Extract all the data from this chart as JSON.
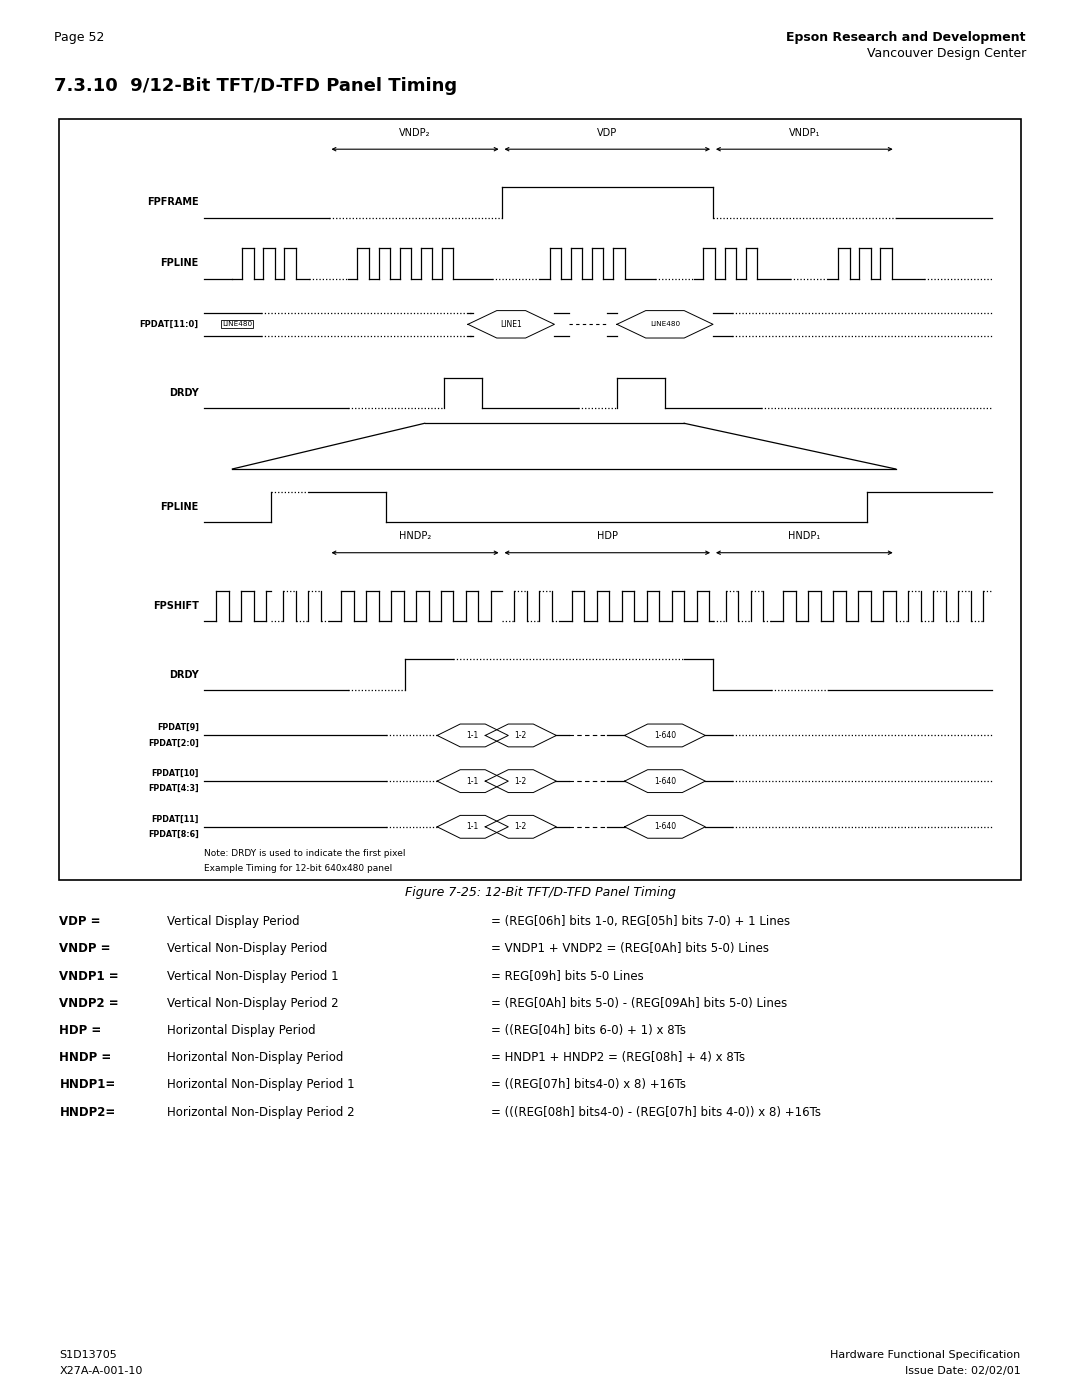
{
  "page_number": "Page 52",
  "header_right_line1": "Epson Research and Development",
  "header_right_line2": "Vancouver Design Center",
  "section_title": "7.3.10  9/12-Bit TFT/D-TFD Panel Timing",
  "figure_caption": "Figure 7-25: 12-Bit TFT/D-TFD Panel Timing",
  "footer_left_line1": "S1D13705",
  "footer_left_line2": "X27A-A-001-10",
  "footer_right_line1": "Hardware Functional Specification",
  "footer_right_line2": "Issue Date: 02/02/01",
  "definitions": [
    [
      "VDP =",
      "Vertical Display Period",
      "= (REG[06h] bits 1-0, REG[05h] bits 7-0) + 1 Lines"
    ],
    [
      "VNDP =",
      "Vertical Non-Display Period",
      "= VNDP1 + VNDP2 = (REG[0Ah] bits 5-0) Lines"
    ],
    [
      "VNDP1 =",
      "Vertical Non-Display Period 1",
      "= REG[09h] bits 5-0 Lines"
    ],
    [
      "VNDP2 =",
      "Vertical Non-Display Period 2",
      "= (REG[0Ah] bits 5-0) - (REG[09Ah] bits 5-0) Lines"
    ],
    [
      "HDP =",
      "Horizontal Display Period",
      "= ((REG[04h] bits 6-0) + 1) x 8Ts"
    ],
    [
      "HNDP =",
      "Horizontal Non-Display Period",
      "= HNDP1 + HNDP2 = (REG[08h] + 4) x 8Ts"
    ],
    [
      "HNDP1=",
      "Horizontal Non-Display Period 1",
      "= ((REG[07h] bits4-0) x 8) +16Ts"
    ],
    [
      "HNDP2=",
      "Horizontal Non-Display Period 2",
      "= (((REG[08h] bits4-0) - (REG[07h] bits 4-0)) x 8) +16Ts"
    ]
  ],
  "note_line1": "Note: DRDY is used to indicate the first pixel",
  "note_line2": "Example Timing for 12-bit 640x480 panel"
}
